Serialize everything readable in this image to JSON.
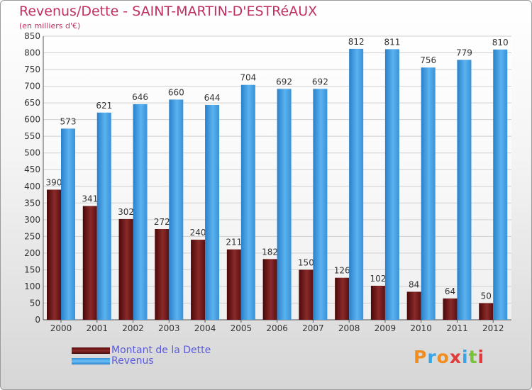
{
  "colors": {
    "title": "#c03060",
    "dette": "#7a1a1a",
    "revenus": "#3a9ae0",
    "legend_text": "#5a5ae0"
  },
  "chart_data": {
    "type": "bar",
    "title": "Revenus/Dette - SAINT-MARTIN-D'ESTRéAUX",
    "subtitle": "(en milliers d'€)",
    "categories": [
      "2000",
      "2001",
      "2002",
      "2003",
      "2004",
      "2005",
      "2006",
      "2007",
      "2008",
      "2009",
      "2010",
      "2011",
      "2012"
    ],
    "series": [
      {
        "name": "Montant de la Dette",
        "color": "#7a1a1a",
        "values": [
          390,
          341,
          302,
          272,
          240,
          211,
          182,
          150,
          126,
          102,
          84,
          64,
          50
        ]
      },
      {
        "name": "Revenus",
        "color": "#3a9ae0",
        "values": [
          573,
          621,
          646,
          660,
          644,
          704,
          692,
          692,
          812,
          811,
          756,
          779,
          810
        ]
      }
    ],
    "ylim": [
      0,
      850
    ],
    "yticks": [
      0,
      50,
      100,
      150,
      200,
      250,
      300,
      350,
      400,
      450,
      500,
      550,
      600,
      650,
      700,
      750,
      800,
      850
    ],
    "grid": true,
    "legend_position": "bottom-left"
  },
  "logo": {
    "text": "Proxiti"
  }
}
